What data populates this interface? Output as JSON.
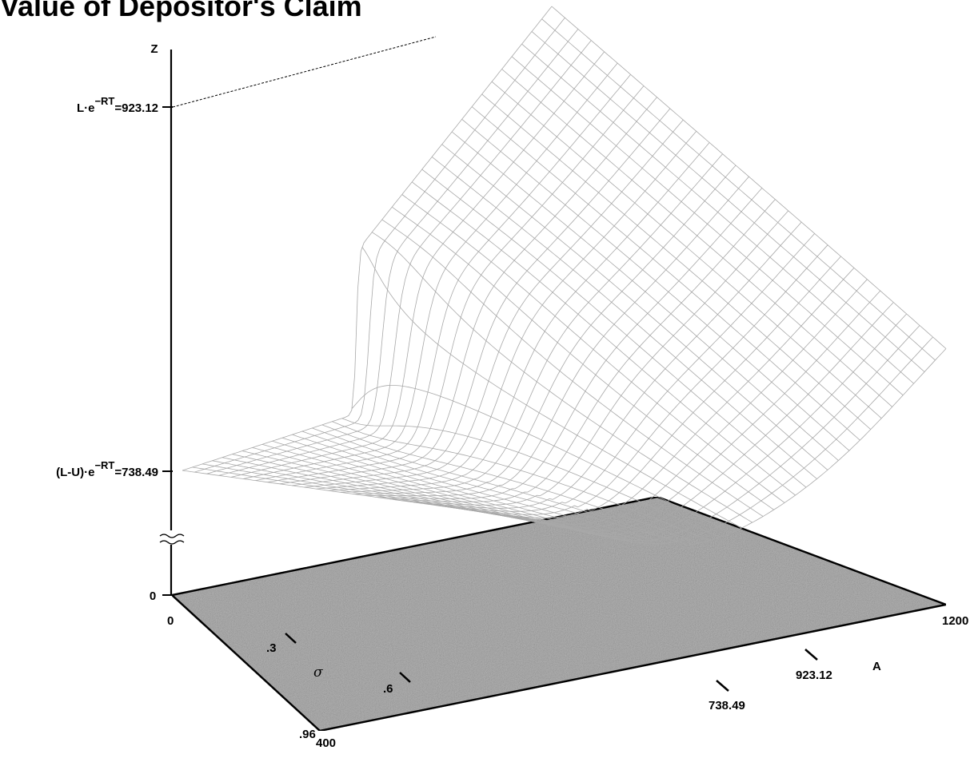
{
  "chart_data": {
    "type": "surface",
    "title": "Value of Depositor's Claim",
    "z_axis": {
      "label": "Z",
      "ticks": [
        {
          "label": "0",
          "value": 0
        },
        {
          "label_parts": [
            "(L-U)·e",
            "−RT",
            "=738.49"
          ],
          "value": 738.49
        },
        {
          "label_parts": [
            "L·e",
            "−RT",
            "=923.12"
          ],
          "value": 923.12
        }
      ],
      "break_between": [
        0,
        738.49
      ]
    },
    "sigma_axis": {
      "label": "σ",
      "ticks": [
        "0",
        ".3",
        ".6",
        ".96"
      ],
      "range": [
        0,
        0.96
      ]
    },
    "a_axis": {
      "label": "A",
      "ticks": [
        "400",
        "738.49",
        "923.12",
        "1200"
      ],
      "range": [
        400,
        1200
      ]
    },
    "surface": {
      "lower_plateau": 738.49,
      "upper_plateau": 923.12,
      "kink_A": 923.12,
      "mesh_lines_sigma": 30,
      "mesh_lines_A": 37
    },
    "colors": {
      "floor": "#bdbdbd",
      "mesh": "#a8a8a8",
      "axis": "#000000"
    }
  }
}
